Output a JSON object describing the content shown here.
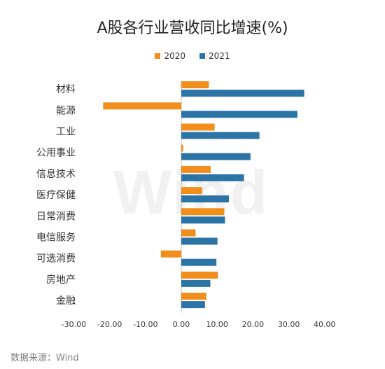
{
  "title": "A股各行业营收同比增速(%)",
  "source": "数据来源：Wind",
  "watermark": "Wind",
  "colors": {
    "2020": "#f28e1b",
    "2021": "#2c74a6",
    "axis": "#bfbfbf",
    "text": "#333333"
  },
  "chart_data": {
    "type": "bar",
    "orientation": "horizontal",
    "categories": [
      "材料",
      "能源",
      "工业",
      "公用事业",
      "信息技术",
      "医疗保健",
      "日常消费",
      "电信服务",
      "可选消费",
      "房地产",
      "金融"
    ],
    "series": [
      {
        "name": "2020",
        "color": "#f28e1b",
        "values": [
          7.7,
          -21.8,
          9.3,
          0.5,
          8.2,
          5.8,
          12.0,
          4.0,
          -5.7,
          10.2,
          7.0
        ]
      },
      {
        "name": "2021",
        "color": "#2c74a6",
        "values": [
          34.3,
          32.4,
          21.8,
          19.3,
          17.5,
          13.3,
          12.2,
          10.1,
          9.8,
          8.1,
          6.6
        ]
      }
    ],
    "xlim": [
      -30,
      40
    ],
    "xticks": [
      "-30.00",
      "-20.00",
      "-10.00",
      "0.00",
      "10.00",
      "20.00",
      "30.00",
      "40.00"
    ],
    "xtick_values": [
      -30,
      -20,
      -10,
      0,
      10,
      20,
      30,
      40
    ],
    "legend_position": "top",
    "grid": false
  }
}
